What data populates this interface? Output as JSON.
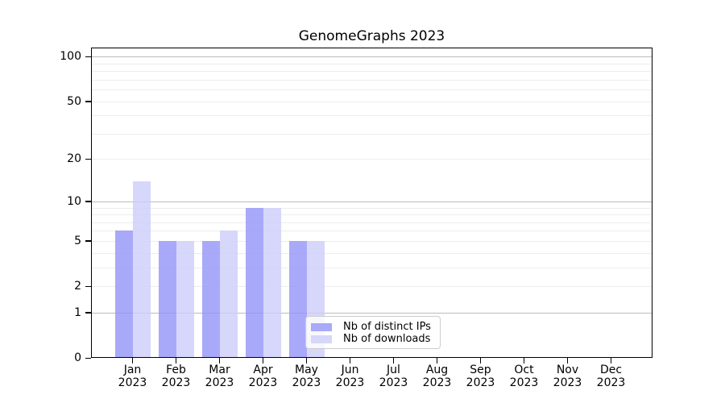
{
  "title": "GenomeGraphs 2023",
  "chart_data": {
    "type": "bar",
    "title": "GenomeGraphs 2023",
    "categories": [
      "Jan",
      "Feb",
      "Mar",
      "Apr",
      "May",
      "Jun",
      "Jul",
      "Aug",
      "Sep",
      "Oct",
      "Nov",
      "Dec"
    ],
    "year_label": "2023",
    "series": [
      {
        "name": "Nb of distinct IPs",
        "color": "#a9a9fa",
        "values": [
          6,
          5,
          5,
          9,
          5,
          0,
          0,
          0,
          0,
          0,
          0,
          0
        ]
      },
      {
        "name": "Nb of downloads",
        "color": "#d7d7fa",
        "values": [
          14,
          5,
          6,
          9,
          5,
          0,
          0,
          0,
          0,
          0,
          0,
          0
        ]
      }
    ],
    "xlabel": "",
    "ylabel": "",
    "yscale": "log1p",
    "ylim": [
      0,
      115
    ],
    "yticks": [
      0,
      1,
      2,
      5,
      10,
      20,
      50,
      100
    ],
    "major_gridlines": [
      1,
      10,
      100
    ],
    "minor_gridlines": [
      2,
      3,
      4,
      5,
      6,
      7,
      8,
      9,
      20,
      30,
      40,
      50,
      60,
      70,
      80,
      90
    ],
    "grid": true,
    "legend_position": "lower center, inside plot",
    "colors": {
      "axis": "#000000",
      "text": "#000000",
      "major_grid": "#bbbbbb",
      "minor_grid": "#ededed",
      "background": "#ffffff"
    }
  }
}
